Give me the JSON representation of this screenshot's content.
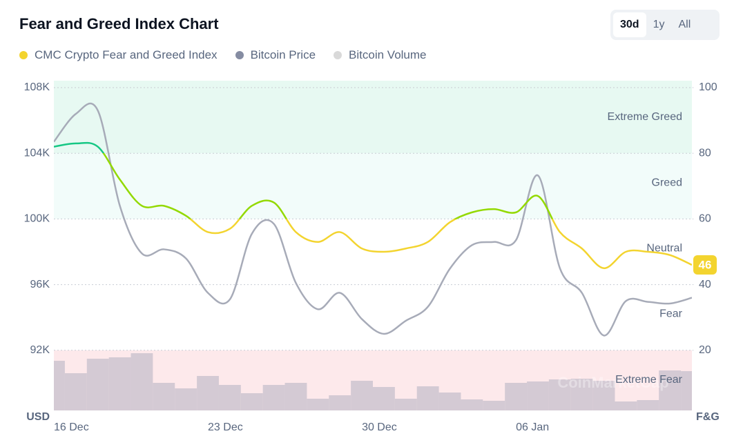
{
  "chart_data": {
    "type": "line",
    "title": "Fear and Greed Index Chart",
    "range_buttons": [
      "30d",
      "1y",
      "All"
    ],
    "active_button": 0,
    "categories": [
      "16 Dec",
      null,
      null,
      null,
      null,
      null,
      null,
      "23 Dec",
      null,
      null,
      null,
      null,
      null,
      null,
      "30 Dec",
      null,
      null,
      null,
      null,
      null,
      null,
      "06 Jan",
      null,
      null,
      null,
      null,
      null,
      null,
      null,
      null
    ],
    "series": [
      {
        "name": "CMC Crypto Fear and Greed Index",
        "color": "#f3d42f",
        "axis": "y2",
        "values": [
          82,
          83,
          82,
          72,
          64,
          64,
          61,
          56,
          57,
          64,
          65,
          56,
          53,
          56,
          51,
          50,
          51,
          53,
          59,
          62,
          63,
          62,
          67,
          56,
          51,
          45,
          50,
          50,
          49,
          46
        ]
      },
      {
        "name": "Bitcoin Price",
        "color": "#858ca2",
        "line_color": "#a7abb8",
        "axis": "y",
        "values": [
          104700,
          106400,
          106600,
          100800,
          97900,
          98150,
          97600,
          95500,
          95100,
          99100,
          99700,
          96100,
          94500,
          95500,
          93900,
          93000,
          93800,
          94650,
          96970,
          98400,
          98600,
          98700,
          102650,
          97000,
          95500,
          92900,
          95000,
          94950,
          94850,
          95200
        ]
      },
      {
        "name": "Bitcoin Volume",
        "color": "#d9d9d9",
        "bar_color": "#cfc6d1",
        "axis": "volume",
        "values": [
          72,
          54,
          75,
          77,
          83,
          40,
          32,
          50,
          37,
          25,
          37,
          40,
          17,
          22,
          43,
          34,
          17,
          35,
          26,
          16,
          14,
          40,
          42,
          45,
          46,
          43,
          13,
          15,
          58,
          57
        ]
      }
    ],
    "zones": [
      {
        "name": "Extreme Greed",
        "from": 80,
        "to": 100,
        "fill": "#e7f9f2",
        "line": "#16c784"
      },
      {
        "name": "Greed",
        "from": 60,
        "to": 80,
        "fill": "#f2fcfa",
        "line": "#93d900"
      },
      {
        "name": "Neutral",
        "from": 40,
        "to": 60,
        "fill": "#ffffff",
        "line": "#f3d42f"
      },
      {
        "name": "Fear",
        "from": 20,
        "to": 40,
        "fill": "#ffffff",
        "line": "#f3d42f"
      },
      {
        "name": "Extreme Fear",
        "from": 0,
        "to": 20,
        "fill": "#fde9eb",
        "line": "#f3d42f"
      }
    ],
    "ylabel": "USD",
    "y2label": "F&G",
    "ylim": [
      88000,
      108000
    ],
    "yticks": [
      {
        "value": 92000,
        "label": "92K"
      },
      {
        "value": 96000,
        "label": "96K"
      },
      {
        "value": 100000,
        "label": "100K"
      },
      {
        "value": 104000,
        "label": "104K"
      },
      {
        "value": 108000,
        "label": "108K"
      }
    ],
    "y2lim": [
      0,
      100
    ],
    "y2ticks": [
      20,
      40,
      60,
      80,
      100
    ],
    "grid": true,
    "watermark": "CoinMarketCap"
  }
}
